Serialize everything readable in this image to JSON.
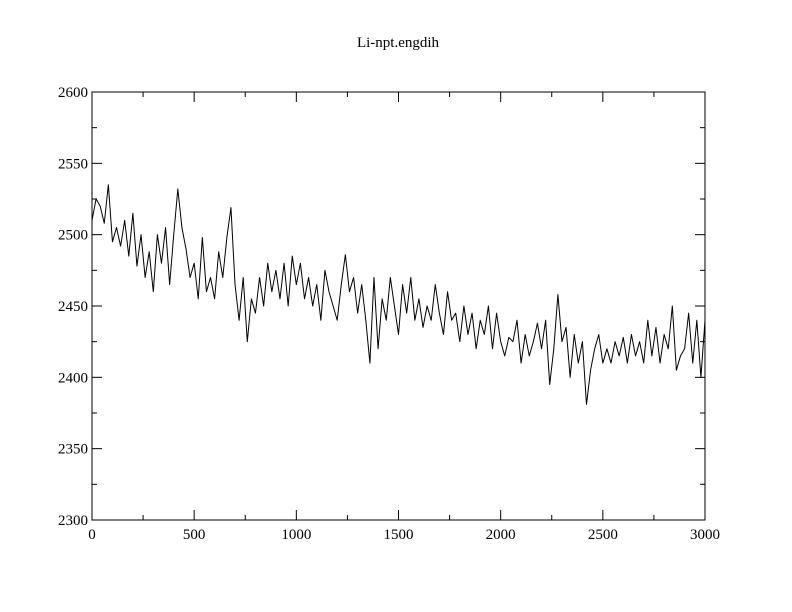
{
  "chart_data": {
    "type": "line",
    "title": "Li-npt.engdih",
    "x": [
      0,
      20,
      40,
      60,
      80,
      100,
      120,
      140,
      160,
      180,
      200,
      220,
      240,
      260,
      280,
      300,
      320,
      340,
      360,
      380,
      400,
      420,
      440,
      460,
      480,
      500,
      520,
      540,
      560,
      580,
      600,
      620,
      640,
      660,
      680,
      700,
      720,
      740,
      760,
      780,
      800,
      820,
      840,
      860,
      880,
      900,
      920,
      940,
      960,
      980,
      1000,
      1020,
      1040,
      1060,
      1080,
      1100,
      1120,
      1140,
      1160,
      1180,
      1200,
      1220,
      1240,
      1260,
      1280,
      1300,
      1320,
      1340,
      1360,
      1380,
      1400,
      1420,
      1440,
      1460,
      1480,
      1500,
      1520,
      1540,
      1560,
      1580,
      1600,
      1620,
      1640,
      1660,
      1680,
      1700,
      1720,
      1740,
      1760,
      1780,
      1800,
      1820,
      1840,
      1860,
      1880,
      1900,
      1920,
      1940,
      1960,
      1980,
      2000,
      2020,
      2040,
      2060,
      2080,
      2100,
      2120,
      2140,
      2160,
      2180,
      2200,
      2220,
      2240,
      2260,
      2280,
      2300,
      2320,
      2340,
      2360,
      2380,
      2400,
      2420,
      2440,
      2460,
      2480,
      2500,
      2520,
      2540,
      2560,
      2580,
      2600,
      2620,
      2640,
      2660,
      2680,
      2700,
      2720,
      2740,
      2760,
      2780,
      2800,
      2820,
      2840,
      2860,
      2880,
      2900,
      2920,
      2940,
      2960,
      2980,
      3000
    ],
    "series": [
      {
        "color": "#000000",
        "values": [
          2510,
          2525,
          2520,
          2508,
          2535,
          2495,
          2505,
          2492,
          2510,
          2485,
          2515,
          2478,
          2500,
          2470,
          2488,
          2460,
          2500,
          2480,
          2505,
          2465,
          2500,
          2532,
          2505,
          2490,
          2470,
          2480,
          2455,
          2498,
          2460,
          2470,
          2455,
          2488,
          2470,
          2498,
          2519,
          2465,
          2440,
          2470,
          2425,
          2455,
          2445,
          2470,
          2450,
          2480,
          2460,
          2475,
          2455,
          2480,
          2450,
          2485,
          2465,
          2480,
          2455,
          2470,
          2450,
          2465,
          2440,
          2475,
          2460,
          2450,
          2440,
          2465,
          2486,
          2460,
          2470,
          2445,
          2465,
          2440,
          2410,
          2470,
          2420,
          2455,
          2440,
          2470,
          2450,
          2430,
          2465,
          2445,
          2470,
          2440,
          2455,
          2435,
          2450,
          2440,
          2465,
          2445,
          2430,
          2460,
          2440,
          2445,
          2425,
          2450,
          2430,
          2445,
          2420,
          2440,
          2430,
          2450,
          2420,
          2445,
          2425,
          2415,
          2428,
          2425,
          2440,
          2410,
          2430,
          2415,
          2425,
          2438,
          2420,
          2440,
          2395,
          2420,
          2458,
          2425,
          2435,
          2400,
          2430,
          2410,
          2425,
          2381,
          2405,
          2420,
          2430,
          2410,
          2420,
          2410,
          2425,
          2415,
          2428,
          2410,
          2430,
          2415,
          2425,
          2410,
          2440,
          2415,
          2435,
          2410,
          2430,
          2420,
          2450,
          2405,
          2415,
          2420,
          2445,
          2410,
          2440,
          2400,
          2440
        ]
      }
    ],
    "xlim": [
      0,
      3000
    ],
    "xticks": [
      0,
      500,
      1000,
      1500,
      2000,
      2500,
      3000
    ],
    "xminorticks": [
      250,
      750,
      1250,
      1750,
      2250,
      2750
    ],
    "ylim": [
      2300,
      2600
    ],
    "yticks": [
      2300,
      2350,
      2400,
      2450,
      2500,
      2550,
      2600
    ],
    "yminorticks": [
      2325,
      2375,
      2425,
      2475,
      2525,
      2575
    ]
  }
}
